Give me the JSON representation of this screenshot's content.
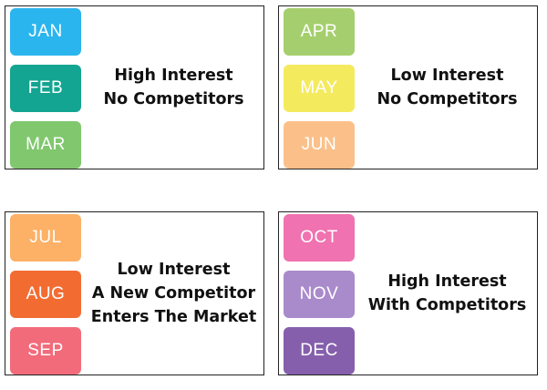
{
  "panels": [
    {
      "months": [
        {
          "label": "JAN",
          "color": "#2bb5ee"
        },
        {
          "label": "FEB",
          "color": "#13a591"
        },
        {
          "label": "MAR",
          "color": "#80c76e"
        }
      ],
      "lines": [
        "High Interest",
        "No Competitors"
      ]
    },
    {
      "months": [
        {
          "label": "APR",
          "color": "#a5cf6e"
        },
        {
          "label": "MAY",
          "color": "#f4ea5e"
        },
        {
          "label": "JUN",
          "color": "#fbc089"
        }
      ],
      "lines": [
        "Low Interest",
        "No Competitors"
      ]
    },
    {
      "months": [
        {
          "label": "JUL",
          "color": "#fcb167"
        },
        {
          "label": "AUG",
          "color": "#f26c32"
        },
        {
          "label": "SEP",
          "color": "#f26b7a"
        }
      ],
      "lines": [
        "Low Interest",
        "A New Competitor",
        "Enters The Market"
      ]
    },
    {
      "months": [
        {
          "label": "OCT",
          "color": "#f072b0"
        },
        {
          "label": "NOV",
          "color": "#a98acb"
        },
        {
          "label": "DEC",
          "color": "#855fac"
        }
      ],
      "lines": [
        "High Interest",
        "With Competitors"
      ]
    }
  ]
}
